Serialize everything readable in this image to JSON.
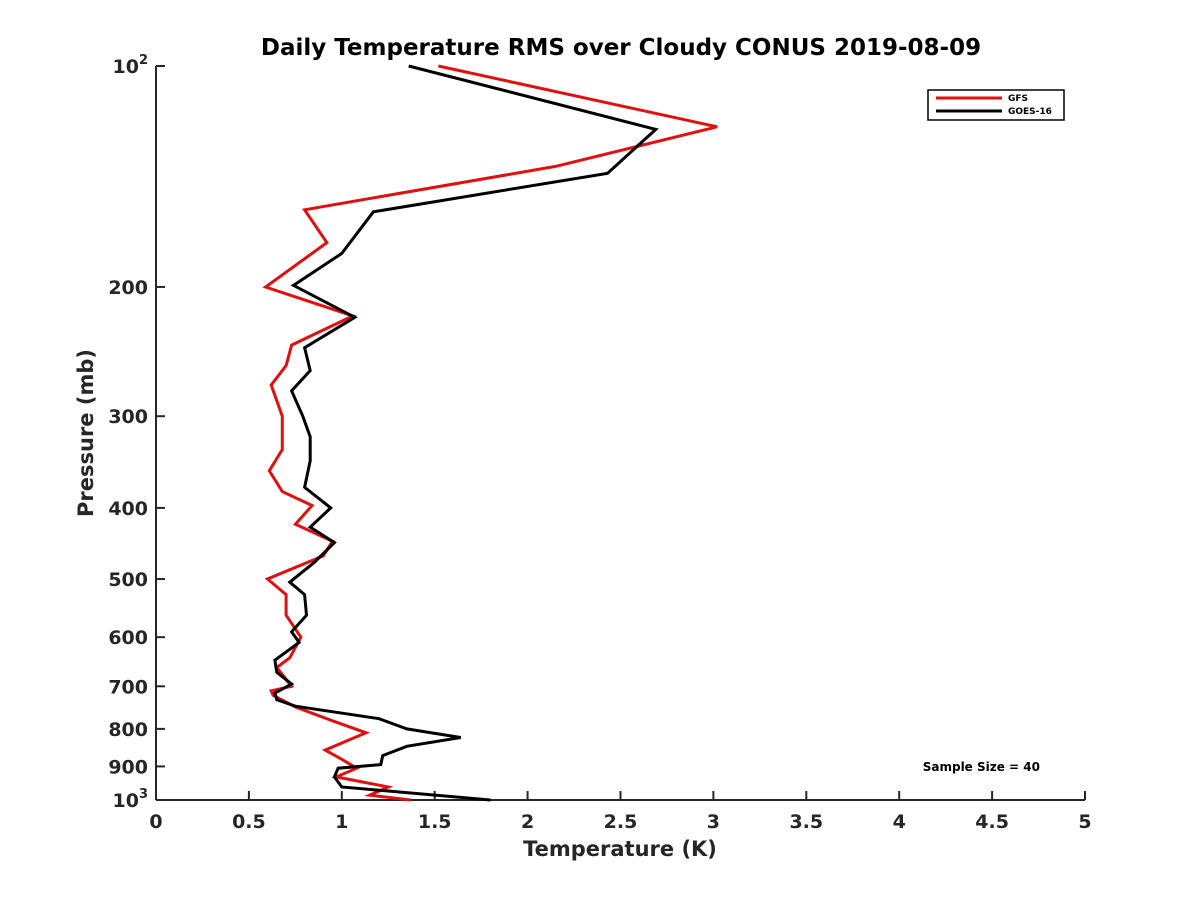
{
  "chart_data": {
    "type": "line",
    "title": "Daily Temperature RMS over Cloudy CONUS 2019-08-09",
    "xlabel": "Temperature (K)",
    "ylabel": "Pressure (mb)",
    "xlim": [
      0,
      5
    ],
    "ylim": [
      100,
      1000
    ],
    "yscale": "log",
    "yreversed": true,
    "xticks": [
      {
        "value": 0,
        "label": "0"
      },
      {
        "value": 0.5,
        "label": "0.5"
      },
      {
        "value": 1,
        "label": "1"
      },
      {
        "value": 1.5,
        "label": "1.5"
      },
      {
        "value": 2,
        "label": "2"
      },
      {
        "value": 2.5,
        "label": "2.5"
      },
      {
        "value": 3,
        "label": "3"
      },
      {
        "value": 3.5,
        "label": "3.5"
      },
      {
        "value": 4,
        "label": "4"
      },
      {
        "value": 4.5,
        "label": "4.5"
      },
      {
        "value": 5,
        "label": "5"
      }
    ],
    "yticks": [
      {
        "value": 100,
        "base": "10",
        "exp": "2"
      },
      {
        "value": 200,
        "label": "200"
      },
      {
        "value": 300,
        "label": "300"
      },
      {
        "value": 400,
        "label": "400"
      },
      {
        "value": 500,
        "label": "500"
      },
      {
        "value": 600,
        "label": "600"
      },
      {
        "value": 700,
        "label": "700"
      },
      {
        "value": 800,
        "label": "800"
      },
      {
        "value": 900,
        "label": "900"
      },
      {
        "value": 1000,
        "base": "10",
        "exp": "3"
      }
    ],
    "legend_position": "top-right",
    "annotation": "Sample Size = 40",
    "series": [
      {
        "name": "GFS",
        "color": "#e01010",
        "points": [
          [
            1.52,
            100
          ],
          [
            3.02,
            121
          ],
          [
            2.15,
            137
          ],
          [
            0.8,
            157
          ],
          [
            0.92,
            174
          ],
          [
            0.59,
            200
          ],
          [
            1.06,
            219
          ],
          [
            0.73,
            240
          ],
          [
            0.7,
            256
          ],
          [
            0.62,
            272
          ],
          [
            0.68,
            300
          ],
          [
            0.68,
            333
          ],
          [
            0.61,
            356
          ],
          [
            0.68,
            380
          ],
          [
            0.84,
            397
          ],
          [
            0.75,
            421
          ],
          [
            0.95,
            444
          ],
          [
            0.9,
            465
          ],
          [
            0.6,
            500
          ],
          [
            0.7,
            525
          ],
          [
            0.7,
            560
          ],
          [
            0.75,
            585
          ],
          [
            0.78,
            600
          ],
          [
            0.72,
            640
          ],
          [
            0.65,
            660
          ],
          [
            0.73,
            700
          ],
          [
            0.62,
            710
          ],
          [
            0.63,
            720
          ],
          [
            0.75,
            747
          ],
          [
            0.95,
            780
          ],
          [
            1.13,
            810
          ],
          [
            0.91,
            855
          ],
          [
            1.0,
            880
          ],
          [
            1.08,
            905
          ],
          [
            0.97,
            930
          ],
          [
            1.25,
            960
          ],
          [
            1.15,
            985
          ],
          [
            1.37,
            1000
          ]
        ]
      },
      {
        "name": "GOES-16",
        "color": "#000000",
        "points": [
          [
            1.36,
            100
          ],
          [
            2.69,
            122
          ],
          [
            2.43,
            140
          ],
          [
            1.17,
            158
          ],
          [
            1.0,
            180
          ],
          [
            0.74,
            199
          ],
          [
            1.07,
            220
          ],
          [
            0.8,
            242
          ],
          [
            0.83,
            260
          ],
          [
            0.73,
            277
          ],
          [
            0.79,
            300
          ],
          [
            0.83,
            320
          ],
          [
            0.83,
            345
          ],
          [
            0.8,
            375
          ],
          [
            0.94,
            400
          ],
          [
            0.83,
            425
          ],
          [
            0.96,
            446
          ],
          [
            0.85,
            475
          ],
          [
            0.72,
            505
          ],
          [
            0.8,
            525
          ],
          [
            0.81,
            560
          ],
          [
            0.73,
            590
          ],
          [
            0.77,
            610
          ],
          [
            0.64,
            645
          ],
          [
            0.65,
            670
          ],
          [
            0.73,
            695
          ],
          [
            0.64,
            715
          ],
          [
            0.65,
            730
          ],
          [
            0.75,
            745
          ],
          [
            1.2,
            775
          ],
          [
            1.35,
            800
          ],
          [
            1.64,
            822
          ],
          [
            1.35,
            845
          ],
          [
            1.22,
            870
          ],
          [
            1.21,
            895
          ],
          [
            0.98,
            905
          ],
          [
            0.96,
            930
          ],
          [
            1.0,
            960
          ],
          [
            1.8,
            1000
          ]
        ]
      }
    ]
  }
}
